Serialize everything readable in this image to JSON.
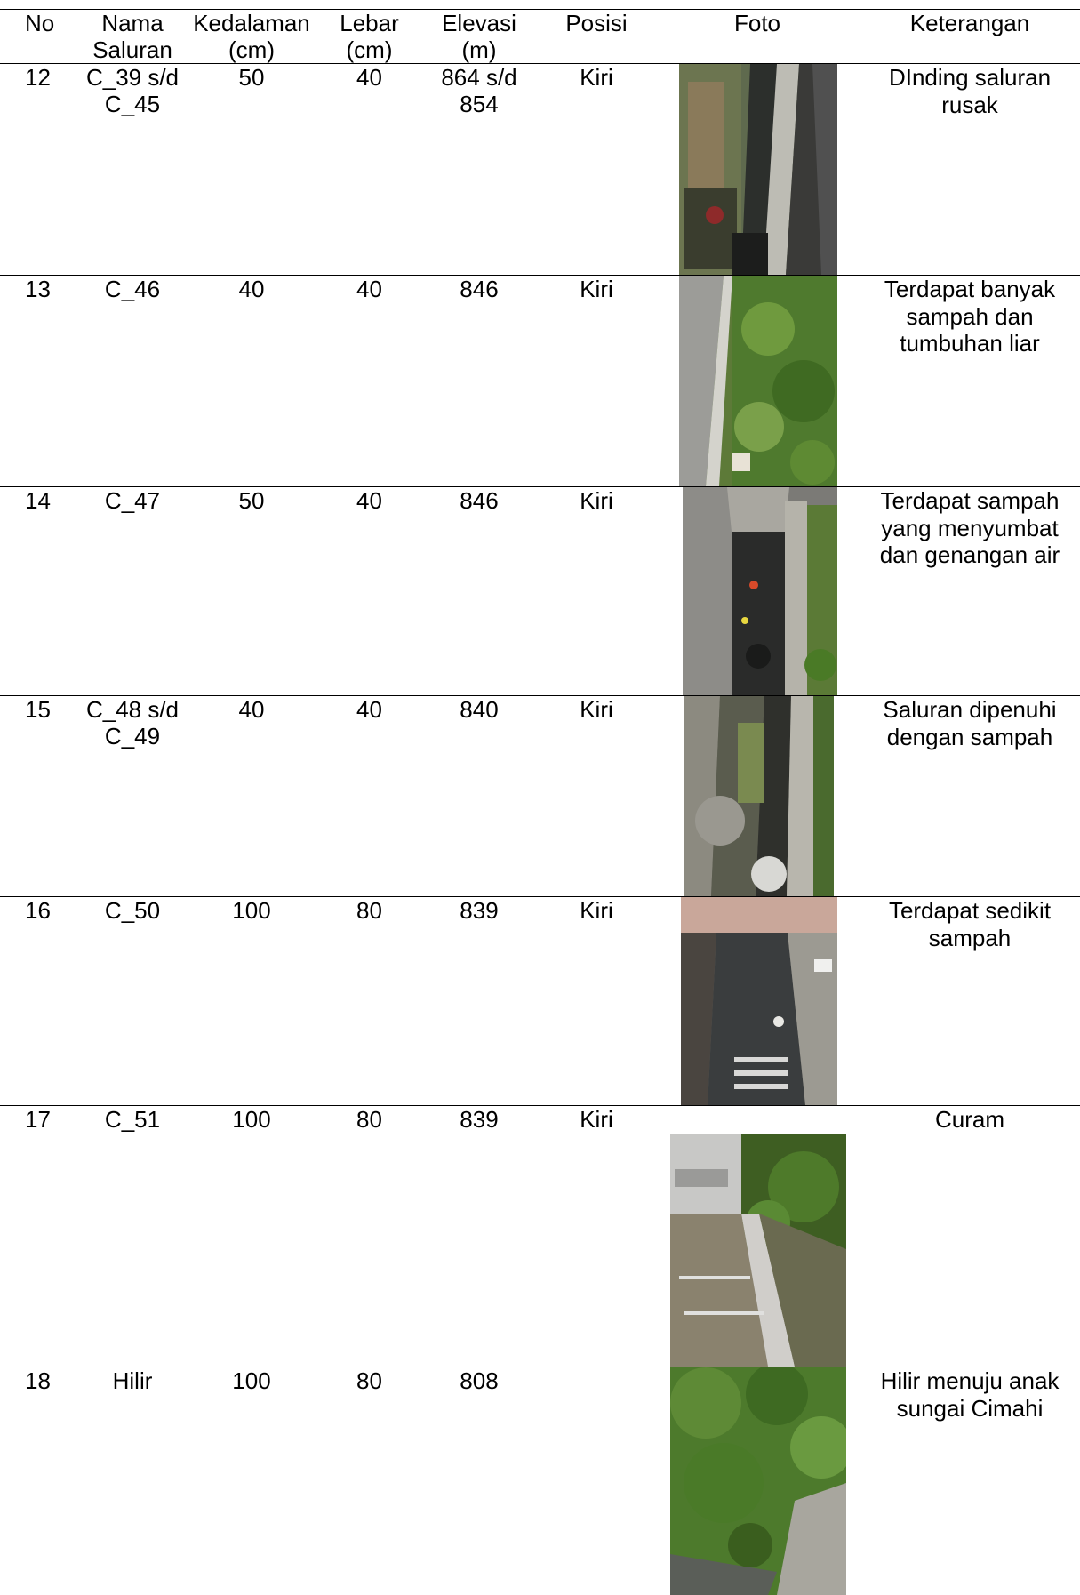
{
  "table": {
    "headers": {
      "no": "No",
      "nama": "Nama Saluran",
      "kedalaman": "Kedalaman (cm)",
      "lebar": "Lebar (cm)",
      "elevasi": "Elevasi (m)",
      "posisi": "Posisi",
      "foto": "Foto",
      "keterangan": "Keterangan"
    },
    "rows": [
      {
        "no": "12",
        "nama": "C_39 s/d C_45",
        "kedalaman": "50",
        "lebar": "40",
        "elevasi": "864 s/d 854",
        "posisi": "Kiri",
        "keterangan": "DInding saluran rusak",
        "photo": "drainage-channel-photo"
      },
      {
        "no": "13",
        "nama": "C_46",
        "kedalaman": "40",
        "lebar": "40",
        "elevasi": "846",
        "posisi": "Kiri",
        "keterangan": "Terdapat banyak sampah dan tumbuhan liar",
        "photo": "overgrown-channel-photo"
      },
      {
        "no": "14",
        "nama": "C_47",
        "kedalaman": "50",
        "lebar": "40",
        "elevasi": "846",
        "posisi": "Kiri",
        "keterangan": "Terdapat sampah yang menyumbat dan genangan air",
        "photo": "clogged-channel-photo"
      },
      {
        "no": "15",
        "nama": "C_48 s/d C_49",
        "kedalaman": "40",
        "lebar": "40",
        "elevasi": "840",
        "posisi": "Kiri",
        "keterangan": "Saluran dipenuhi dengan sampah",
        "photo": "trash-filled-channel-photo"
      },
      {
        "no": "16",
        "nama": "C_50",
        "kedalaman": "100",
        "lebar": "80",
        "elevasi": "839",
        "posisi": "Kiri",
        "keterangan": "Terdapat sedikit sampah",
        "photo": "wide-channel-photo"
      },
      {
        "no": "17",
        "nama": "C_51",
        "kedalaman": "100",
        "lebar": "80",
        "elevasi": "839",
        "posisi": "Kiri",
        "keterangan": "Curam",
        "photo": "steep-channel-photo"
      },
      {
        "no": "18",
        "nama": "Hilir",
        "kedalaman": "100",
        "lebar": "80",
        "elevasi": "808",
        "posisi": "",
        "keterangan": "Hilir menuju anak sungai Cimahi",
        "photo": "downstream-channel-photo"
      }
    ]
  }
}
